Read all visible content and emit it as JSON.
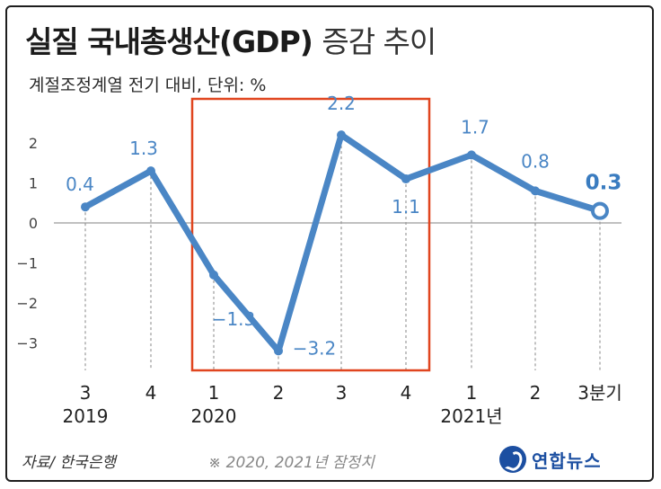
{
  "header": {
    "title_main": "실질 국내총생산(GDP)",
    "title_tail": "증감 추이",
    "subtitle": "계절조정계열 전기 대비, 단위: %"
  },
  "footer": {
    "source": "자료/ 한국은행",
    "note": "※ 2020, 2021년 잠정치",
    "logo_text": "연합뉴스"
  },
  "colors": {
    "line": "#4a86c5",
    "highlight_box": "#e0451f",
    "logo": "#1c4fa1"
  },
  "chart_data": {
    "type": "line",
    "title": "실질 국내총생산(GDP) 증감 추이",
    "subtitle": "계절조정계열 전기 대비, 단위: %",
    "categories": [
      "3",
      "4",
      "1",
      "2",
      "3",
      "4",
      "1",
      "2",
      "3분기"
    ],
    "year_labels": [
      {
        "label": "2019",
        "index": 0
      },
      {
        "label": "2020",
        "index": 2
      },
      {
        "label": "2021년",
        "index": 6
      }
    ],
    "values": [
      0.4,
      1.3,
      -1.3,
      -3.2,
      2.2,
      1.1,
      1.7,
      0.8,
      0.3
    ],
    "value_labels": [
      "0.4",
      "1.3",
      "−1.3",
      "−3.2",
      "2.2",
      "1.1",
      "1.7",
      "0.8",
      "0.3"
    ],
    "ylim": [
      -3.2,
      2.4
    ],
    "yticks": [
      2,
      1,
      0,
      -1,
      -2,
      -3
    ],
    "ytick_labels": [
      "2",
      "1",
      "0",
      "−1",
      "−2",
      "−3"
    ],
    "highlight_range": [
      2,
      5
    ],
    "last_point_hollow": true,
    "grid": "vertical dashed per point, solid zero line"
  }
}
